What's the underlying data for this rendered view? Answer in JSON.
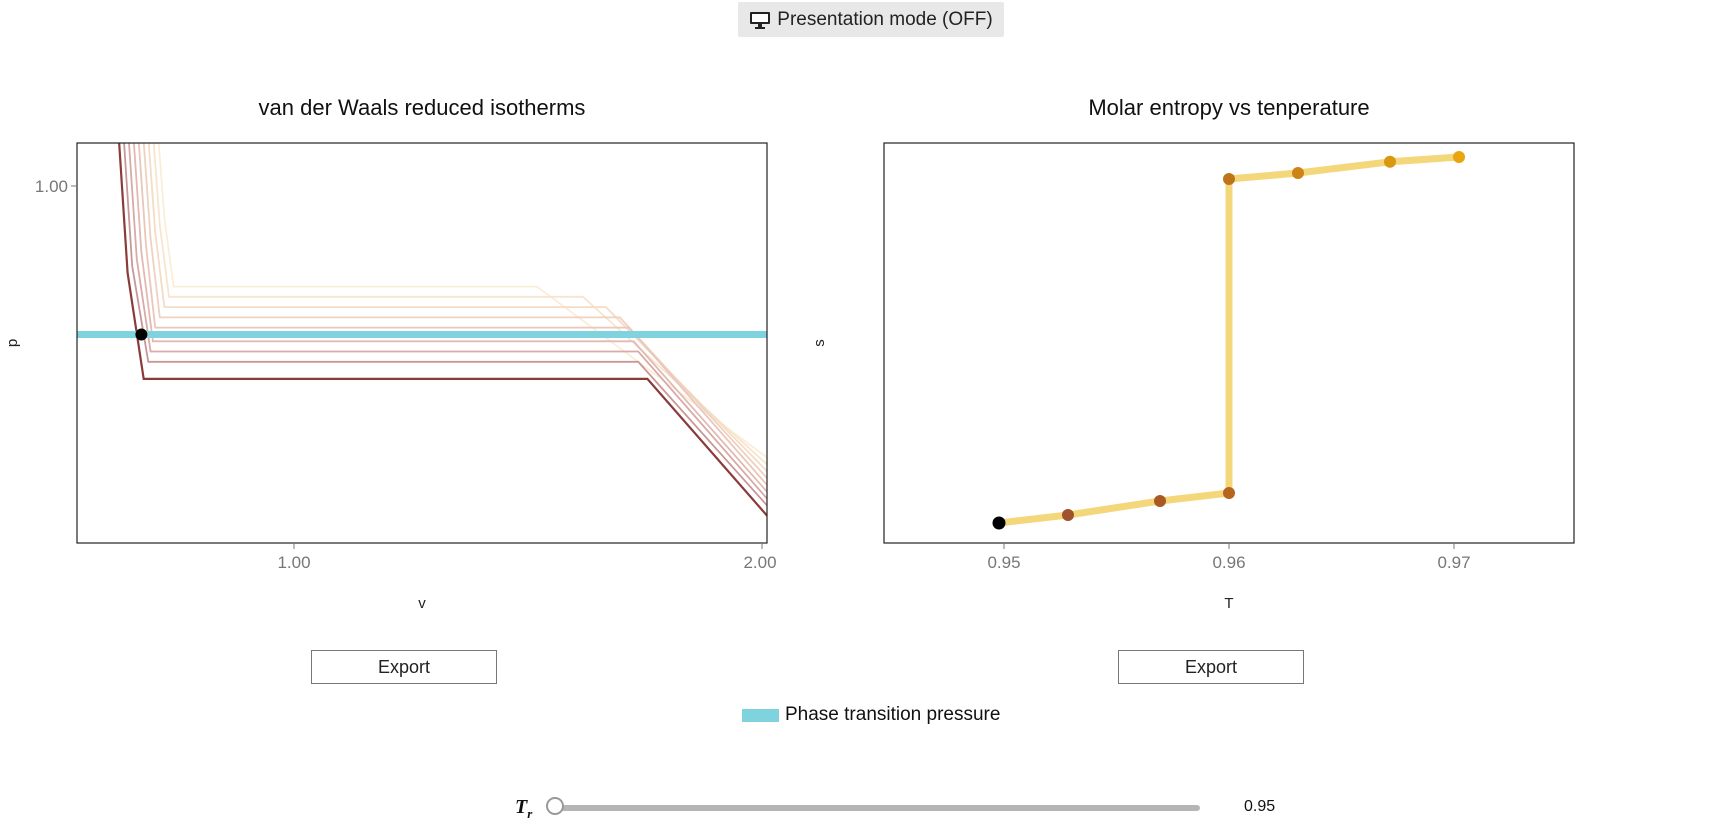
{
  "presentation_button": {
    "label": "Presentation mode (OFF)",
    "icon": "monitor-icon"
  },
  "left_chart": {
    "title": "van der Waals reduced isotherms",
    "xlabel": "v",
    "ylabel": "p",
    "xticks": [
      "1.00",
      "2.00"
    ],
    "yticks": [
      "1.00"
    ],
    "export_label": "Export"
  },
  "right_chart": {
    "title": "Molar entropy vs tenperature",
    "xlabel": "T",
    "ylabel": "s",
    "xticks": [
      "0.95",
      "0.96",
      "0.97"
    ],
    "export_label": "Export"
  },
  "legend": {
    "label": "Phase transition pressure",
    "color": "#7fd3df"
  },
  "slider": {
    "label": "T",
    "label_sub": "r",
    "value": "0.95",
    "min": 0.95,
    "max": 1.0
  },
  "chart_data": [
    {
      "type": "line",
      "title": "van der Waals reduced isotherms",
      "xlabel": "v",
      "ylabel": "p",
      "xlim": [
        0.5,
        2.0
      ],
      "ylim": [
        0.485,
        1.07
      ],
      "phase_transition_pressure": 0.79,
      "marker": {
        "x": 0.64,
        "y": 0.79
      },
      "series": [
        {
          "color": "#fbeed7",
          "values": [
            [
              0.635,
              1.45
            ],
            [
              0.69,
              0.96
            ],
            [
              0.71,
              0.86
            ],
            [
              1.5,
              0.86
            ],
            [
              2.0,
              0.61
            ]
          ]
        },
        {
          "color": "#f8e5cf",
          "values": [
            [
              0.625,
              1.45
            ],
            [
              0.68,
              0.95
            ],
            [
              0.7,
              0.845
            ],
            [
              1.6,
              0.845
            ],
            [
              2.0,
              0.6
            ]
          ]
        },
        {
          "color": "#f4dcc6",
          "values": [
            [
              0.615,
              1.45
            ],
            [
              0.67,
              0.94
            ],
            [
              0.69,
              0.83
            ],
            [
              1.65,
              0.83
            ],
            [
              2.0,
              0.59
            ]
          ]
        },
        {
          "color": "#efd1c0",
          "values": [
            [
              0.605,
              1.45
            ],
            [
              0.66,
              0.93
            ],
            [
              0.68,
              0.815
            ],
            [
              1.68,
              0.815
            ],
            [
              2.0,
              0.58
            ]
          ]
        },
        {
          "color": "#eac6bb",
          "values": [
            [
              0.595,
              1.45
            ],
            [
              0.65,
              0.92
            ],
            [
              0.67,
              0.8
            ],
            [
              1.7,
              0.8
            ],
            [
              2.0,
              0.57
            ]
          ]
        },
        {
          "color": "#e2b9b3",
          "values": [
            [
              0.585,
              1.45
            ],
            [
              0.64,
              0.91
            ],
            [
              0.665,
              0.78
            ],
            [
              1.71,
              0.78
            ],
            [
              2.0,
              0.56
            ]
          ]
        },
        {
          "color": "#d8aaa8",
          "values": [
            [
              0.575,
              1.45
            ],
            [
              0.63,
              0.9
            ],
            [
              0.66,
              0.765
            ],
            [
              1.72,
              0.765
            ],
            [
              2.0,
              0.55
            ]
          ]
        },
        {
          "color": "#c99797",
          "values": [
            [
              0.565,
              1.45
            ],
            [
              0.62,
              0.89
            ],
            [
              0.655,
              0.75
            ],
            [
              1.72,
              0.75
            ],
            [
              2.0,
              0.54
            ]
          ]
        },
        {
          "color": "#8b3a3a",
          "values": [
            [
              0.555,
              1.45
            ],
            [
              0.61,
              0.88
            ],
            [
              0.645,
              0.725
            ],
            [
              1.74,
              0.725
            ],
            [
              2.0,
              0.525
            ]
          ]
        }
      ]
    },
    {
      "type": "line",
      "title": "Molar entropy vs tenperature",
      "xlabel": "T",
      "ylabel": "s",
      "xlim": [
        0.945,
        0.975
      ],
      "ylim": [
        0.0,
        1.0
      ],
      "line_color": "#f3d77a",
      "x": [
        0.95,
        0.953,
        0.957,
        0.96,
        0.96,
        0.963,
        0.967,
        0.97
      ],
      "y": [
        0.05,
        0.07,
        0.105,
        0.125,
        0.91,
        0.925,
        0.953,
        0.965
      ],
      "point_colors": [
        "#000000",
        "#a0522d",
        "#a85a22",
        "#b5651d",
        "#c0741a",
        "#cd8316",
        "#da9712",
        "#e8a50e"
      ]
    }
  ]
}
